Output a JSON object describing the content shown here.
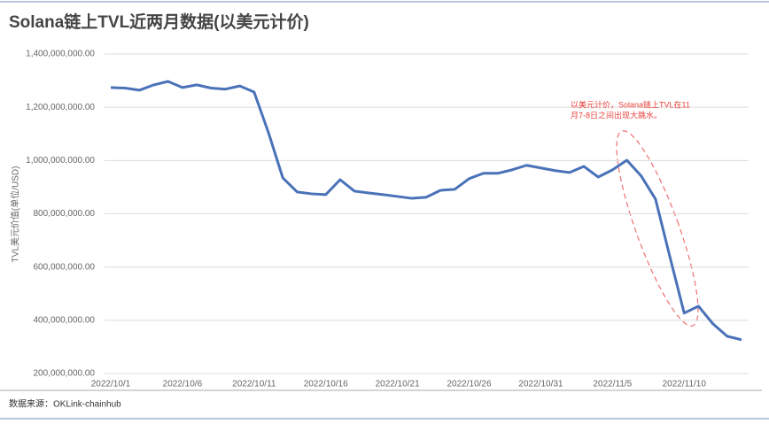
{
  "chart_data": {
    "type": "line",
    "title": "Solana链上TVL近两月数据(以美元计价)",
    "y_label": "TVL美元价值(单位/USD)",
    "source": "数据来源：OKLink-chainhub",
    "annotation": [
      "以美元计价，Solana链上TVL在11",
      "月7-8日之间出现大跳水。"
    ],
    "annotation_color": "#e8403a",
    "categories": [
      "2022/10/1",
      null,
      null,
      null,
      null,
      "2022/10/6",
      null,
      null,
      null,
      null,
      "2022/10/11",
      null,
      null,
      null,
      null,
      "2022/10/16",
      null,
      null,
      null,
      null,
      "2022/10/21",
      null,
      null,
      null,
      null,
      "2022/10/26",
      null,
      null,
      null,
      null,
      "2022/10/31",
      null,
      null,
      null,
      null,
      "2022/11/5",
      null,
      null,
      null,
      null,
      "2022/11/10",
      null,
      null,
      null,
      null
    ],
    "series": [
      {
        "name": "TVL",
        "color": "#4a72b8",
        "values": [
          1274000000,
          1272000000,
          1264000000,
          1284000000,
          1297000000,
          1274000000,
          1284000000,
          1272000000,
          1268000000,
          1280000000,
          1257000000,
          1105000000,
          935000000,
          882000000,
          875000000,
          872000000,
          928000000,
          885000000,
          878000000,
          872000000,
          865000000,
          858000000,
          862000000,
          888000000,
          892000000,
          932000000,
          952000000,
          952000000,
          965000000,
          982000000,
          972000000,
          962000000,
          955000000,
          978000000,
          938000000,
          965000000,
          1001000000,
          942000000,
          855000000,
          639000000,
          427000000,
          453000000,
          387000000,
          340000000,
          327000000
        ]
      }
    ],
    "ylim": [
      200000000,
      1400000000
    ],
    "yticks": [
      {
        "value": 200000000,
        "label": "200,000,000.00"
      },
      {
        "value": 400000000,
        "label": "400,000,000.00"
      },
      {
        "value": 600000000,
        "label": "600,000,000.00"
      },
      {
        "value": 800000000,
        "label": "800,000,000.00"
      },
      {
        "value": 1000000000,
        "label": "1,000,000,000.00"
      },
      {
        "value": 1200000000,
        "label": "1,200,000,000.00"
      },
      {
        "value": 1400000000,
        "label": "1,400,000,000.00"
      }
    ],
    "grid": true
  }
}
